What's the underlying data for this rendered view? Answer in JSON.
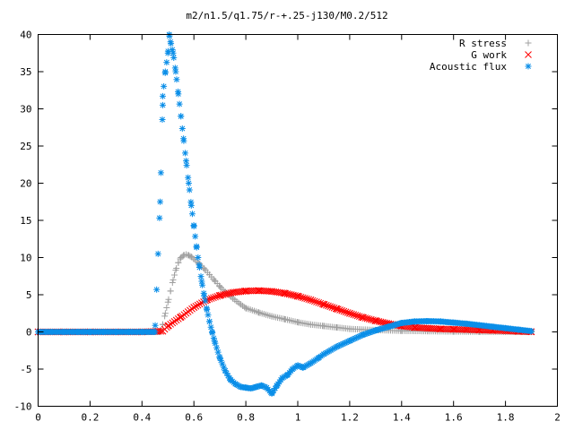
{
  "chart_data": {
    "type": "scatter",
    "title": "m2/n1.5/q1.75/r-+.25-j130/M0.2/512",
    "xlabel": "",
    "ylabel": "",
    "xlim": [
      0,
      2
    ],
    "ylim": [
      -10,
      40
    ],
    "xticks": [
      0,
      0.2,
      0.4,
      0.6,
      0.8,
      1,
      1.2,
      1.4,
      1.6,
      1.8,
      2
    ],
    "xtick_labels": [
      "0",
      "0.2",
      "0.4",
      "0.6",
      "0.8",
      "1",
      "1.2",
      "1.4",
      "1.6",
      "1.8",
      "2"
    ],
    "yticks": [
      -10,
      -5,
      0,
      5,
      10,
      15,
      20,
      25,
      30,
      35,
      40
    ],
    "ytick_labels": [
      "-10",
      "-5",
      "0",
      "5",
      "10",
      "15",
      "20",
      "25",
      "30",
      "35",
      "40"
    ],
    "grid": false,
    "legend_position": "top-right",
    "series": [
      {
        "name": "R stress",
        "marker": "plus",
        "color": "#a0a0a0",
        "x": [
          0.0,
          0.1,
          0.2,
          0.3,
          0.4,
          0.47,
          0.48,
          0.49,
          0.5,
          0.51,
          0.52,
          0.53,
          0.54,
          0.55,
          0.56,
          0.57,
          0.58,
          0.59,
          0.6,
          0.62,
          0.64,
          0.66,
          0.68,
          0.7,
          0.72,
          0.75,
          0.78,
          0.8,
          0.85,
          0.9,
          0.95,
          1.0,
          1.05,
          1.1,
          1.15,
          1.2,
          1.3,
          1.4,
          1.5,
          1.6,
          1.7,
          1.8,
          1.9
        ],
        "y": [
          0,
          0,
          0,
          0,
          0,
          0,
          1.0,
          2.5,
          4.0,
          5.5,
          7.0,
          8.3,
          9.3,
          10.0,
          10.3,
          10.4,
          10.3,
          10.1,
          9.8,
          9.2,
          8.5,
          7.7,
          6.9,
          6.1,
          5.4,
          4.5,
          3.7,
          3.2,
          2.6,
          2.1,
          1.7,
          1.3,
          1.0,
          0.8,
          0.6,
          0.4,
          0.25,
          0.15,
          0.1,
          0.05,
          0.02,
          0.01,
          0
        ]
      },
      {
        "name": "G work",
        "marker": "cross",
        "color": "#ff0000",
        "x": [
          0.0,
          0.1,
          0.2,
          0.3,
          0.4,
          0.48,
          0.5,
          0.55,
          0.6,
          0.65,
          0.7,
          0.75,
          0.8,
          0.85,
          0.9,
          0.95,
          1.0,
          1.05,
          1.1,
          1.15,
          1.2,
          1.25,
          1.3,
          1.35,
          1.4,
          1.45,
          1.5,
          1.55,
          1.6,
          1.65,
          1.7,
          1.75,
          1.8,
          1.85,
          1.9
        ],
        "y": [
          0,
          0,
          0,
          0,
          0,
          0.1,
          0.8,
          2.0,
          3.3,
          4.3,
          4.9,
          5.3,
          5.5,
          5.55,
          5.45,
          5.2,
          4.8,
          4.3,
          3.7,
          3.1,
          2.5,
          1.95,
          1.5,
          1.1,
          0.8,
          0.6,
          0.5,
          0.4,
          0.35,
          0.3,
          0.25,
          0.2,
          0.15,
          0.08,
          0.02
        ]
      },
      {
        "name": "Acoustic flux",
        "marker": "star",
        "color": "#0a8ee8",
        "x": [
          0.0,
          0.05,
          0.1,
          0.15,
          0.2,
          0.25,
          0.3,
          0.35,
          0.4,
          0.45,
          0.47,
          0.48,
          0.48,
          0.49,
          0.5,
          0.505,
          0.51,
          0.52,
          0.53,
          0.54,
          0.55,
          0.56,
          0.57,
          0.58,
          0.59,
          0.6,
          0.61,
          0.62,
          0.63,
          0.64,
          0.65,
          0.66,
          0.67,
          0.68,
          0.7,
          0.72,
          0.74,
          0.76,
          0.78,
          0.8,
          0.82,
          0.84,
          0.86,
          0.88,
          0.9,
          0.92,
          0.94,
          0.96,
          0.98,
          1.0,
          1.02,
          1.05,
          1.08,
          1.1,
          1.15,
          1.2,
          1.25,
          1.3,
          1.35,
          1.4,
          1.45,
          1.5,
          1.55,
          1.6,
          1.65,
          1.7,
          1.75,
          1.8,
          1.85,
          1.9
        ],
        "y": [
          0,
          0,
          0,
          0,
          0,
          0,
          0,
          0,
          0,
          0,
          17.5,
          30.5,
          31.7,
          35.0,
          37.5,
          40.0,
          39.0,
          37.5,
          35.0,
          32.0,
          29.0,
          26.0,
          23.0,
          20.0,
          17.0,
          14.2,
          11.5,
          9.0,
          6.8,
          4.8,
          3.0,
          1.4,
          0.0,
          -1.3,
          -3.5,
          -5.2,
          -6.4,
          -7.0,
          -7.4,
          -7.5,
          -7.6,
          -7.4,
          -7.2,
          -7.5,
          -8.3,
          -7.2,
          -6.2,
          -5.8,
          -5.0,
          -4.5,
          -4.8,
          -4.2,
          -3.5,
          -3.0,
          -2.0,
          -1.2,
          -0.4,
          0.2,
          0.7,
          1.2,
          1.4,
          1.45,
          1.4,
          1.25,
          1.1,
          0.9,
          0.7,
          0.5,
          0.3,
          0.1
        ]
      }
    ]
  }
}
